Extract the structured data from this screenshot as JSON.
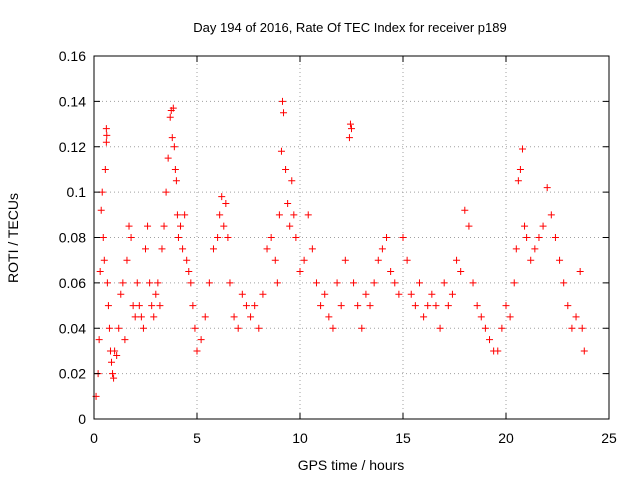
{
  "chart_data": {
    "type": "scatter",
    "title": "Day 194 of 2016, Rate Of TEC Index for receiver p189",
    "xlabel": "GPS time / hours",
    "ylabel": "ROTI / TECUs",
    "xlim": [
      0,
      25
    ],
    "ylim": [
      0,
      0.16
    ],
    "xticks": [
      "0",
      "5",
      "10",
      "15",
      "20",
      "25"
    ],
    "yticks": [
      "0",
      "0.02",
      "0.04",
      "0.06",
      "0.08",
      "0.1",
      "0.12",
      "0.14",
      "0.16"
    ],
    "grid": true,
    "marker": "plus",
    "color": "#ff0000",
    "series": [
      {
        "x": [
          0.1,
          0.2,
          0.25,
          0.3,
          0.35,
          0.4,
          0.45,
          0.5,
          0.55,
          0.6,
          0.6,
          0.62,
          0.65,
          0.7,
          0.75,
          0.8,
          0.85,
          0.9,
          0.95,
          1.0,
          1.1,
          1.2,
          1.3,
          1.4,
          1.5,
          1.6,
          1.7,
          1.8,
          1.9,
          2.0,
          2.1,
          2.2,
          2.3,
          2.4,
          2.5,
          2.6,
          2.7,
          2.8,
          2.9,
          3.0,
          3.1,
          3.2,
          3.3,
          3.4,
          3.5,
          3.6,
          3.7,
          3.75,
          3.8,
          3.85,
          3.9,
          3.95,
          4.0,
          4.05,
          4.1,
          4.2,
          4.3,
          4.4,
          4.5,
          4.6,
          4.7,
          4.8,
          4.9,
          5.0,
          5.2,
          5.4,
          5.6,
          5.8,
          6.0,
          6.1,
          6.2,
          6.3,
          6.4,
          6.5,
          6.6,
          6.8,
          7.0,
          7.2,
          7.4,
          7.6,
          7.8,
          8.0,
          8.2,
          8.4,
          8.6,
          8.8,
          8.9,
          9.0,
          9.1,
          9.15,
          9.2,
          9.3,
          9.4,
          9.5,
          9.6,
          9.7,
          9.8,
          10.0,
          10.2,
          10.4,
          10.6,
          10.8,
          11.0,
          11.2,
          11.4,
          11.6,
          11.8,
          12.0,
          12.2,
          12.4,
          12.45,
          12.5,
          12.6,
          12.8,
          13.0,
          13.2,
          13.4,
          13.6,
          13.8,
          14.0,
          14.2,
          14.4,
          14.6,
          14.8,
          15.0,
          15.2,
          15.4,
          15.6,
          15.8,
          16.0,
          16.2,
          16.4,
          16.6,
          16.8,
          17.0,
          17.2,
          17.4,
          17.6,
          17.8,
          18.0,
          18.2,
          18.4,
          18.6,
          18.8,
          19.0,
          19.2,
          19.4,
          19.6,
          19.8,
          20.0,
          20.2,
          20.4,
          20.5,
          20.6,
          20.7,
          20.8,
          20.9,
          21.0,
          21.2,
          21.4,
          21.6,
          21.8,
          22.0,
          22.2,
          22.4,
          22.6,
          22.8,
          23.0,
          23.2,
          23.4,
          23.6,
          23.7,
          23.8
        ],
        "y": [
          0.01,
          0.02,
          0.035,
          0.065,
          0.092,
          0.1,
          0.08,
          0.07,
          0.11,
          0.128,
          0.122,
          0.125,
          0.06,
          0.05,
          0.04,
          0.03,
          0.025,
          0.02,
          0.018,
          0.03,
          0.028,
          0.04,
          0.055,
          0.06,
          0.035,
          0.07,
          0.085,
          0.08,
          0.05,
          0.045,
          0.06,
          0.05,
          0.045,
          0.04,
          0.075,
          0.085,
          0.06,
          0.05,
          0.045,
          0.055,
          0.06,
          0.05,
          0.075,
          0.085,
          0.1,
          0.115,
          0.133,
          0.136,
          0.124,
          0.137,
          0.12,
          0.11,
          0.105,
          0.09,
          0.08,
          0.085,
          0.075,
          0.09,
          0.07,
          0.065,
          0.06,
          0.05,
          0.04,
          0.03,
          0.035,
          0.045,
          0.06,
          0.075,
          0.08,
          0.09,
          0.098,
          0.085,
          0.095,
          0.08,
          0.06,
          0.045,
          0.04,
          0.055,
          0.05,
          0.045,
          0.05,
          0.04,
          0.055,
          0.075,
          0.08,
          0.07,
          0.06,
          0.09,
          0.118,
          0.14,
          0.135,
          0.11,
          0.095,
          0.085,
          0.105,
          0.09,
          0.08,
          0.065,
          0.07,
          0.09,
          0.075,
          0.06,
          0.05,
          0.055,
          0.045,
          0.04,
          0.06,
          0.05,
          0.07,
          0.124,
          0.13,
          0.128,
          0.06,
          0.05,
          0.04,
          0.055,
          0.05,
          0.06,
          0.07,
          0.075,
          0.08,
          0.065,
          0.06,
          0.055,
          0.08,
          0.07,
          0.055,
          0.05,
          0.06,
          0.045,
          0.05,
          0.055,
          0.05,
          0.04,
          0.06,
          0.05,
          0.055,
          0.07,
          0.065,
          0.092,
          0.085,
          0.06,
          0.05,
          0.045,
          0.04,
          0.035,
          0.03,
          0.03,
          0.04,
          0.05,
          0.045,
          0.06,
          0.075,
          0.105,
          0.11,
          0.119,
          0.085,
          0.08,
          0.07,
          0.075,
          0.08,
          0.085,
          0.102,
          0.09,
          0.08,
          0.07,
          0.06,
          0.05,
          0.04,
          0.045,
          0.065,
          0.04,
          0.03
        ]
      }
    ]
  }
}
